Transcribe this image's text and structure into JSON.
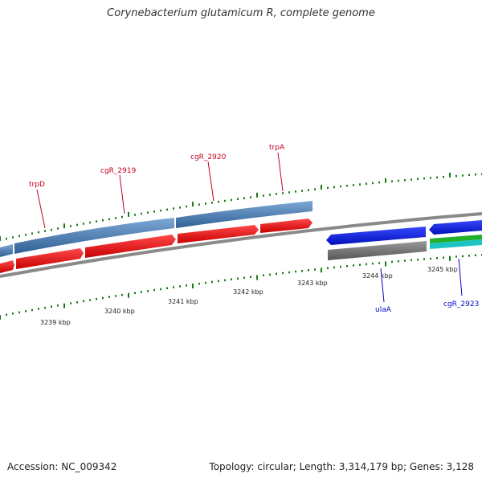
{
  "title": "Corynebacterium glutamicum R, complete genome",
  "accession": "Accession: NC_009342",
  "summary": "Topology: circular; Length: 3,314,179 bp; Genes: 3,128",
  "ticks": [
    "3239 kbp",
    "3240 kbp",
    "3241 kbp",
    "3242 kbp",
    "3243 kbp",
    "3244 kbp",
    "3245 kbp"
  ],
  "genes_forward": [
    "trpD",
    "cgR_2919",
    "cgR_2920",
    "trpA"
  ],
  "genes_reverse": [
    "ulaA",
    "cgR_2923"
  ],
  "colors": {
    "cds": "#e8000e",
    "gene_block": "#4a7fb5",
    "reverse_cds": "#0a18e0",
    "gray": "#707070",
    "tick": "#1a7a1a",
    "label_forward": "#c0001a",
    "label_reverse": "#0000c8"
  }
}
